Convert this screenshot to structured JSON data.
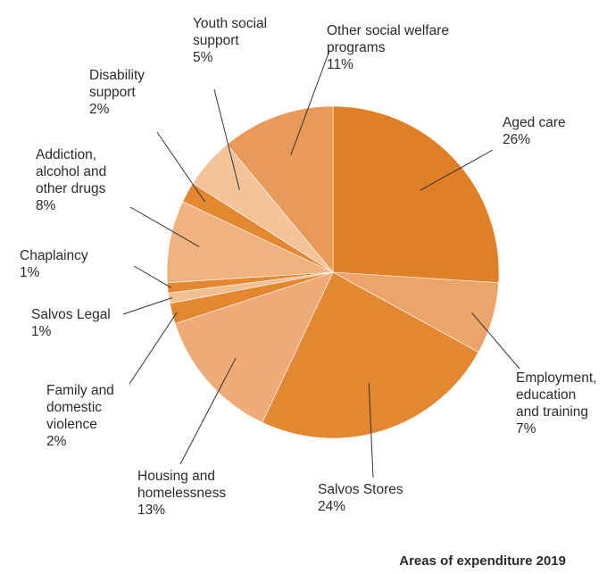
{
  "chart_data": {
    "type": "pie",
    "title": "Areas of expenditure 2019",
    "start": "12 o'clock",
    "direction": "clockwise",
    "slices": [
      {
        "label_lines": [
          "Aged care",
          "26%"
        ],
        "value": 26,
        "color": "#e07f26"
      },
      {
        "label_lines": [
          "Employment,",
          "education",
          "and training",
          "7%"
        ],
        "value": 7,
        "color": "#eba46a"
      },
      {
        "label_lines": [
          "Salvos Stores",
          "24%"
        ],
        "value": 24,
        "color": "#e38731"
      },
      {
        "label_lines": [
          "Housing and",
          "homelessness",
          "13%"
        ],
        "value": 13,
        "color": "#eeaa77"
      },
      {
        "label_lines": [
          "Family and",
          "domestic",
          "violence",
          "2%"
        ],
        "value": 2,
        "color": "#e38731"
      },
      {
        "label_lines": [
          "Salvos Legal",
          "1%"
        ],
        "value": 1,
        "color": "#f2bf93"
      },
      {
        "label_lines": [
          "Chaplaincy",
          "1%"
        ],
        "value": 1,
        "color": "#e38731"
      },
      {
        "label_lines": [
          "Addiction,",
          "alcohol and",
          "other drugs",
          "8%"
        ],
        "value": 8,
        "color": "#f0b27f"
      },
      {
        "label_lines": [
          "Disability",
          "support",
          "2%"
        ],
        "value": 2,
        "color": "#e38731"
      },
      {
        "label_lines": [
          "Youth social",
          "support",
          "5%"
        ],
        "value": 5,
        "color": "#f3c399"
      },
      {
        "label_lines": [
          "Other social welfare",
          "programs",
          "11%"
        ],
        "value": 11,
        "color": "#e89a58"
      }
    ]
  }
}
